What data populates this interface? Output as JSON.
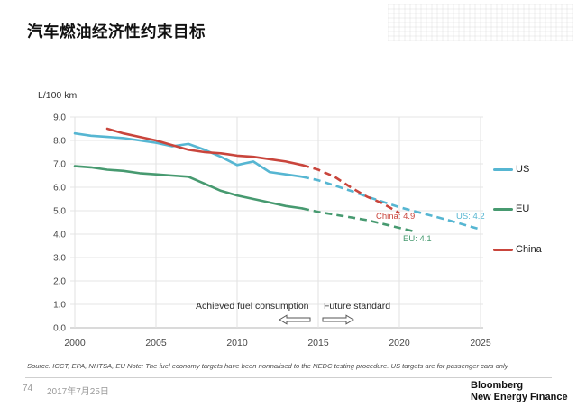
{
  "title": "汽车燃油经济性约束目标",
  "chart_data": {
    "type": "line",
    "y_axis_label": "L/100 km",
    "xlim": [
      2000,
      2025
    ],
    "ylim": [
      0,
      9
    ],
    "x_ticks": [
      2000,
      2005,
      2010,
      2015,
      2020,
      2025
    ],
    "y_ticks": [
      0,
      1,
      2,
      3,
      4,
      5,
      6,
      7,
      8,
      9
    ],
    "grid": true,
    "legend_position": "right",
    "series": [
      {
        "name": "US",
        "color": "#56b6d2",
        "achieved": [
          [
            2000,
            8.3
          ],
          [
            2001,
            8.2
          ],
          [
            2002,
            8.15
          ],
          [
            2003,
            8.1
          ],
          [
            2004,
            8.0
          ],
          [
            2005,
            7.9
          ],
          [
            2006,
            7.75
          ],
          [
            2007,
            7.85
          ],
          [
            2008,
            7.6
          ],
          [
            2009,
            7.3
          ],
          [
            2010,
            6.95
          ],
          [
            2011,
            7.1
          ],
          [
            2012,
            6.65
          ],
          [
            2013,
            6.55
          ],
          [
            2014,
            6.45
          ]
        ],
        "future": [
          [
            2014,
            6.45
          ],
          [
            2015,
            6.3
          ],
          [
            2017,
            5.85
          ],
          [
            2018,
            5.6
          ],
          [
            2020,
            5.15
          ],
          [
            2023,
            4.6
          ],
          [
            2025,
            4.2
          ]
        ],
        "end_label": "US: 4.2"
      },
      {
        "name": "EU",
        "color": "#479a70",
        "achieved": [
          [
            2000,
            6.9
          ],
          [
            2001,
            6.85
          ],
          [
            2002,
            6.75
          ],
          [
            2003,
            6.7
          ],
          [
            2004,
            6.6
          ],
          [
            2005,
            6.55
          ],
          [
            2006,
            6.5
          ],
          [
            2007,
            6.45
          ],
          [
            2008,
            6.15
          ],
          [
            2009,
            5.85
          ],
          [
            2010,
            5.65
          ],
          [
            2011,
            5.5
          ],
          [
            2012,
            5.35
          ],
          [
            2013,
            5.2
          ],
          [
            2014,
            5.1
          ]
        ],
        "future": [
          [
            2014,
            5.1
          ],
          [
            2015,
            4.95
          ],
          [
            2018,
            4.6
          ],
          [
            2021,
            4.1
          ]
        ],
        "end_label": "EU: 4.1"
      },
      {
        "name": "China",
        "color": "#c9453c",
        "achieved": [
          [
            2002,
            8.5
          ],
          [
            2003,
            8.3
          ],
          [
            2004,
            8.15
          ],
          [
            2005,
            8.0
          ],
          [
            2006,
            7.8
          ],
          [
            2007,
            7.6
          ],
          [
            2008,
            7.5
          ],
          [
            2009,
            7.45
          ],
          [
            2010,
            7.35
          ],
          [
            2011,
            7.3
          ],
          [
            2012,
            7.2
          ],
          [
            2013,
            7.1
          ],
          [
            2014,
            6.95
          ]
        ],
        "future": [
          [
            2014,
            6.95
          ],
          [
            2015,
            6.75
          ],
          [
            2016,
            6.45
          ],
          [
            2017,
            6.0
          ],
          [
            2018,
            5.6
          ],
          [
            2019,
            5.3
          ],
          [
            2020,
            4.9
          ]
        ],
        "end_label": "China: 4.9"
      }
    ],
    "annotations": {
      "achieved_label": "Achieved fuel consumption",
      "future_label": "Future standard"
    }
  },
  "footer": {
    "source": "Source: ICCT, EPA, NHTSA, EU Note: The fuel economy targets have been normalised to the NEDC testing procedure. US targets are for passenger cars only.",
    "page": "74",
    "date": "2017年7月25日",
    "brand_line1": "Bloomberg",
    "brand_line2": "New Energy Finance"
  }
}
